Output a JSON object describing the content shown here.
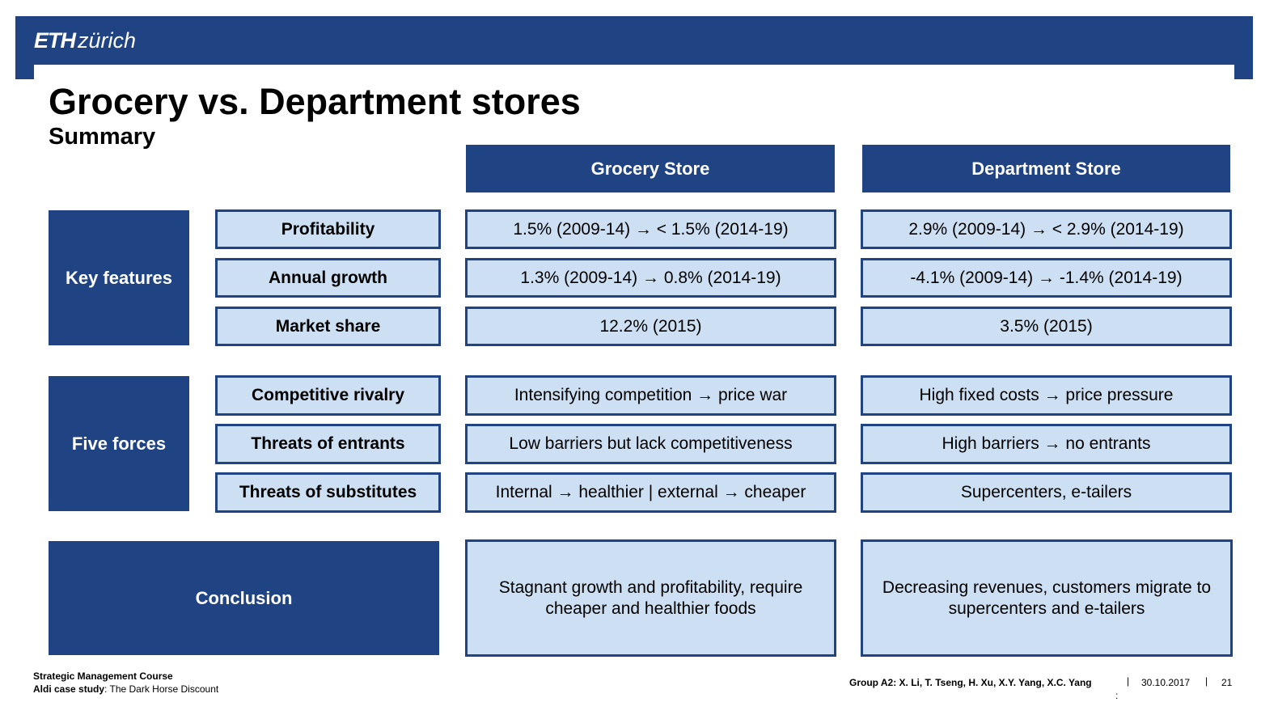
{
  "header": {
    "logo_eth": "ETH",
    "logo_city": "zürich"
  },
  "slide": {
    "title": "Grocery vs. Department stores",
    "subtitle": "Summary"
  },
  "table": {
    "columns": {
      "grocery": "Grocery Store",
      "department": "Department Store"
    },
    "groups": [
      {
        "label": "Key features",
        "rows": [
          {
            "feature": "Profitability",
            "grocery": "1.5% (2009-14) → < 1.5% (2014-19)",
            "department": "2.9% (2009-14) → < 2.9% (2014-19)"
          },
          {
            "feature": "Annual growth",
            "grocery": "1.3% (2009-14) → 0.8% (2014-19)",
            "department": "-4.1% (2009-14) → -1.4% (2014-19)"
          },
          {
            "feature": "Market share",
            "grocery": "12.2% (2015)",
            "department": "3.5% (2015)"
          }
        ]
      },
      {
        "label": "Five forces",
        "rows": [
          {
            "feature": "Competitive rivalry",
            "grocery": "Intensifying competition → price war",
            "department": "High fixed costs → price pressure"
          },
          {
            "feature": "Threats of entrants",
            "grocery": "Low barriers but lack competitiveness",
            "department": "High barriers → no entrants"
          },
          {
            "feature": "Threats of substitutes",
            "grocery": "Internal → healthier | external → cheaper",
            "department": "Supercenters, e-tailers"
          }
        ]
      }
    ],
    "conclusion": {
      "label": "Conclusion",
      "grocery": "Stagnant growth and profitability, require cheaper and healthier foods",
      "department": "Decreasing revenues, customers migrate to supercenters and e-tailers"
    }
  },
  "footer": {
    "course": "Strategic Management Course",
    "case_label": "Aldi case study",
    "case_title": ": The Dark Horse Discount",
    "group": "Group A2: X. Li, T. Tseng, H. Xu, X.Y. Yang, X.C. Yang",
    "sep1": "|",
    "date": "30.10.2017",
    "sep2": "|",
    "page": "21",
    "colon": ":"
  },
  "colors": {
    "brand_blue": "#1f4383",
    "cell_fill": "#ccdff3"
  }
}
